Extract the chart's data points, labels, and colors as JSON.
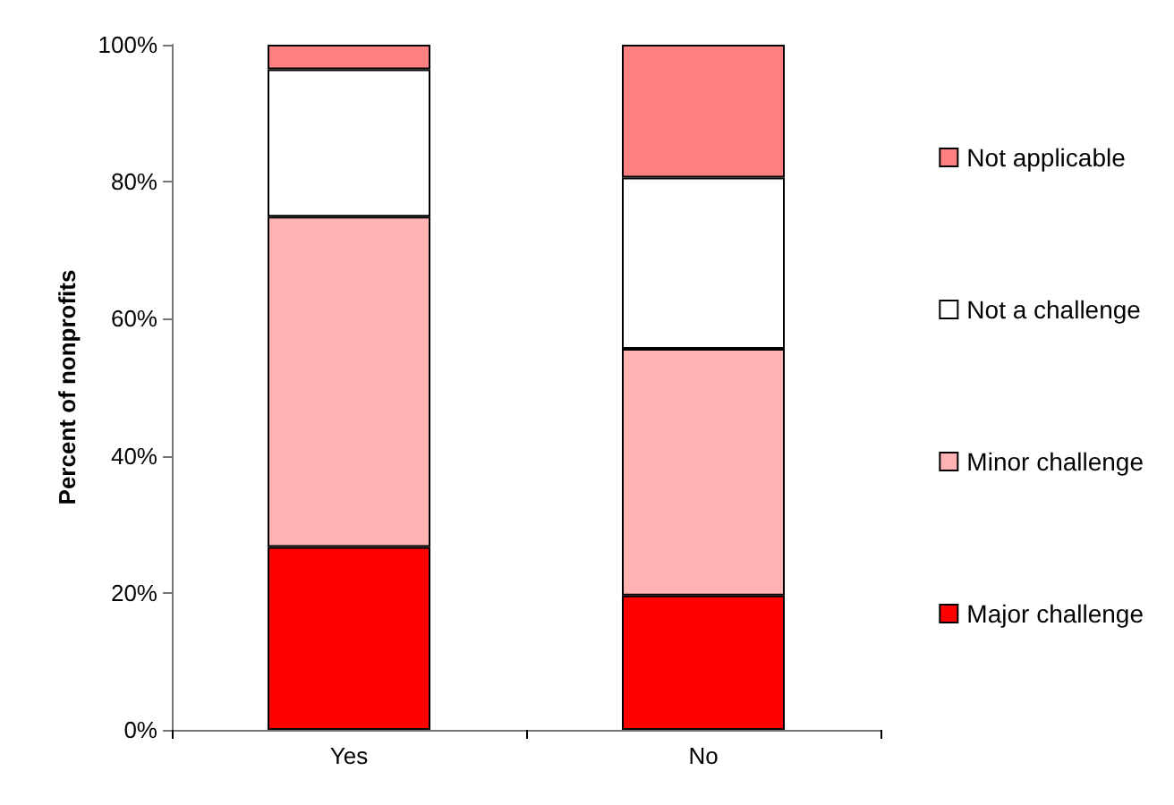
{
  "chart_data": {
    "type": "bar",
    "stacked": true,
    "ylabel": "Percent of nonprofits",
    "categories": [
      "Yes",
      "No"
    ],
    "series": [
      {
        "name": "Major challenge",
        "color": "#ff0000",
        "values": [
          26.7,
          19.6
        ]
      },
      {
        "name": "Minor challenge",
        "color": "#ffb3b3",
        "values": [
          48.2,
          36.0
        ]
      },
      {
        "name": "Not a challenge",
        "color": "#ffffff",
        "values": [
          21.5,
          25.0
        ]
      },
      {
        "name": "Not applicable",
        "color": "#ff8080",
        "values": [
          3.6,
          19.4
        ]
      }
    ],
    "ylim": [
      0,
      100
    ],
    "yticks": [
      {
        "value": 0,
        "label": "0%"
      },
      {
        "value": 20,
        "label": "20%"
      },
      {
        "value": 40,
        "label": "40%"
      },
      {
        "value": 60,
        "label": "60%"
      },
      {
        "value": 80,
        "label": "80%"
      },
      {
        "value": 100,
        "label": "100%"
      }
    ],
    "grid": false,
    "legend": "right"
  }
}
